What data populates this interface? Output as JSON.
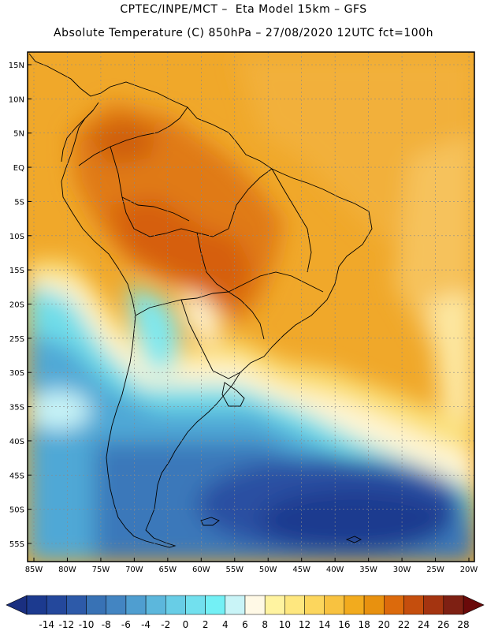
{
  "header": {
    "line1": "CPTEC/INPE/MCT –  Eta Model 15km – GFS",
    "line2": "Absolute Temperature (C) 850hPa – 27/08/2020 12UTC fct=100h"
  },
  "axes": {
    "lat_labels": [
      "15N",
      "10N",
      "5N",
      "EQ",
      "5S",
      "10S",
      "15S",
      "20S",
      "25S",
      "30S",
      "35S",
      "40S",
      "45S",
      "50S",
      "55S"
    ],
    "lon_labels": [
      "85W",
      "80W",
      "75W",
      "70W",
      "65W",
      "60W",
      "55W",
      "50W",
      "45W",
      "40W",
      "35W",
      "30W",
      "25W",
      "20W"
    ],
    "lat_range": [
      -58,
      17
    ],
    "lon_range": [
      -86,
      -20
    ]
  },
  "colorbar": {
    "labels": [
      "-14",
      "-12",
      "-10",
      "-8",
      "-6",
      "-4",
      "-2",
      "0",
      "2",
      "4",
      "6",
      "8",
      "10",
      "12",
      "14",
      "16",
      "18",
      "20",
      "22",
      "24",
      "26",
      "28"
    ],
    "colors": [
      "#1c3a8f",
      "#24489c",
      "#2d5aa9",
      "#3872b5",
      "#4385c2",
      "#4f9ed0",
      "#5cb7dc",
      "#68cde6",
      "#72e0ee",
      "#73f0f5",
      "#c9f4f7",
      "#fff9e6",
      "#fff3a0",
      "#fee77f",
      "#fcd65d",
      "#f8c240",
      "#f2ab1e",
      "#e8910f",
      "#dc6a0c",
      "#c54e0d",
      "#a43410",
      "#7e2013"
    ],
    "under_color": "#1a2f80",
    "over_color": "#6a0a0a"
  }
}
